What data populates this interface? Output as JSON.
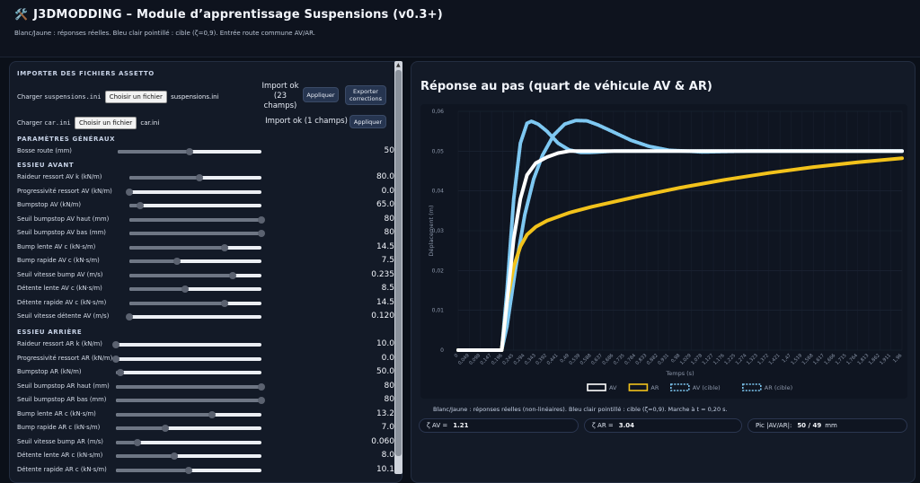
{
  "header": {
    "logo_icon": "🛠️",
    "title": "J3DMODDING – Module d’apprentissage Suspensions (v0.3+)",
    "subtitle": "Blanc/Jaune : réponses réelles. Bleu clair pointillé : cible (ζ=0,9). Entrée route commune AV/AR."
  },
  "import": {
    "section_title": "IMPORTER DES FICHIERS ASSETTO",
    "susp_label": "Charger",
    "susp_file": "suspensions.ini",
    "susp_choose": "Choisir un fichier",
    "susp_selected": "suspensions.ini",
    "susp_status": "Import ok (23 champs)",
    "susp_apply": "Appliquer",
    "export_label": "Exporter corrections",
    "car_label": "Charger",
    "car_file": "car.ini",
    "car_choose": "Choisir un fichier",
    "car_selected": "car.ini",
    "car_status": "Import ok (1 champs)",
    "car_apply": "Appliquer"
  },
  "general": {
    "title": "PARAMÈTRES GÉNÉRAUX",
    "params": [
      {
        "label": "Bosse route (mm)",
        "value": "50",
        "fill": 0.5
      }
    ]
  },
  "front": {
    "title": "ESSIEU AVANT",
    "params": [
      {
        "label": "Raideur ressort AV k (kN/m)",
        "value": "80.0",
        "fill": 0.53
      },
      {
        "label": "Progressivité ressort AV (kN/m)",
        "value": "0.0",
        "fill": 0.0
      },
      {
        "label": "Bumpstop AV (kN/m)",
        "value": "65.0",
        "fill": 0.08
      },
      {
        "label": "Seuil bumpstop AV haut (mm)",
        "value": "80",
        "fill": 1.0
      },
      {
        "label": "Seuil bumpstop AV bas (mm)",
        "value": "80",
        "fill": 1.0
      },
      {
        "label": "Bump lente AV c (kN·s/m)",
        "value": "14.5",
        "fill": 0.72
      },
      {
        "label": "Bump rapide AV c (kN·s/m)",
        "value": "7.5",
        "fill": 0.36
      },
      {
        "label": "Seuil vitesse bump AV (m/s)",
        "value": "0.235",
        "fill": 0.78
      },
      {
        "label": "Détente lente AV c (kN·s/m)",
        "value": "8.5",
        "fill": 0.42
      },
      {
        "label": "Détente rapide AV c (kN·s/m)",
        "value": "14.5",
        "fill": 0.72
      },
      {
        "label": "Seuil vitesse détente AV (m/s)",
        "value": "0.120",
        "fill": 0.0
      }
    ]
  },
  "rear": {
    "title": "ESSIEU ARRIÈRE",
    "params": [
      {
        "label": "Raideur ressort AR k (kN/m)",
        "value": "10.0",
        "fill": 0.0
      },
      {
        "label": "Progressivité ressort AR (kN/m)",
        "value": "0.0",
        "fill": 0.0
      },
      {
        "label": "Bumpstop AR (kN/m)",
        "value": "50.0",
        "fill": 0.03
      },
      {
        "label": "Seuil bumpstop AR haut (mm)",
        "value": "80",
        "fill": 1.0
      },
      {
        "label": "Seuil bumpstop AR bas (mm)",
        "value": "80",
        "fill": 1.0
      },
      {
        "label": "Bump lente AR c (kN·s/m)",
        "value": "13.2",
        "fill": 0.66
      },
      {
        "label": "Bump rapide AR c (kN·s/m)",
        "value": "7.0",
        "fill": 0.34
      },
      {
        "label": "Seuil vitesse bump AR (m/s)",
        "value": "0.060",
        "fill": 0.15
      },
      {
        "label": "Détente lente AR c (kN·s/m)",
        "value": "8.0",
        "fill": 0.4
      },
      {
        "label": "Détente rapide AR c (kN·s/m)",
        "value": "10.1",
        "fill": 0.5
      }
    ]
  },
  "chart": {
    "title": "Réponse au pas (quart de véhicule AV & AR)",
    "note": "Blanc/Jaune : réponses réelles (non-linéaires). Bleu clair pointillé : cible (ζ=0,9). Marche à t = 0,20 s.",
    "metrics": {
      "zeta_av_label": "ζ AV =",
      "zeta_av": "1.21",
      "zeta_ar_label": "ζ AR =",
      "zeta_ar": "3.04",
      "pic_label": "Pic |AV/AR|:",
      "pic_value": "50 / 49",
      "pic_unit": "mm"
    }
  },
  "chart_data": {
    "type": "line",
    "title": "Réponse au pas (quart de véhicule AV & AR)",
    "xlabel": "Temps (s)",
    "ylabel": "Déplacement (m)",
    "ylim": [
      0,
      0.06
    ],
    "yticks": [
      0,
      0.01,
      0.02,
      0.03,
      0.04,
      0.05,
      0.06
    ],
    "ytick_labels": [
      "0",
      "0,01",
      "0,02",
      "0,03",
      "0,04",
      "0,05",
      "0,06"
    ],
    "xlim": [
      0,
      2.0
    ],
    "xtick_labels": [
      "0",
      "0,049",
      "0,098",
      "0,147",
      "0,196",
      "0,245",
      "0,294",
      "0,343",
      "0,392",
      "0,441",
      "0,49",
      "0,539",
      "0,588",
      "0,637",
      "0,686",
      "0,735",
      "0,784",
      "0,833",
      "0,882",
      "0,931",
      "0,98",
      "1,029",
      "1,078",
      "1,127",
      "1,176",
      "1,225",
      "1,274",
      "1,323",
      "1,372",
      "1,421",
      "1,47",
      "1,519",
      "1,568",
      "1,617",
      "1,666",
      "1,715",
      "1,764",
      "1,813",
      "1,862",
      "1,911",
      "1,96"
    ],
    "legend_position": "bottom",
    "series": [
      {
        "name": "AV",
        "color": "#ffffff",
        "style": "solid",
        "x": [
          0,
          0.196,
          0.22,
          0.25,
          0.28,
          0.31,
          0.35,
          0.4,
          0.45,
          0.5,
          0.6,
          0.8,
          1.2,
          2.0
        ],
        "y": [
          0,
          0,
          0.012,
          0.028,
          0.038,
          0.044,
          0.047,
          0.0485,
          0.0495,
          0.05,
          0.05,
          0.05,
          0.05,
          0.05
        ]
      },
      {
        "name": "AR",
        "color": "#f2c21b",
        "style": "solid",
        "x": [
          0,
          0.196,
          0.22,
          0.25,
          0.28,
          0.31,
          0.35,
          0.4,
          0.5,
          0.6,
          0.8,
          1.0,
          1.2,
          1.4,
          1.6,
          1.8,
          2.0
        ],
        "y": [
          0,
          0,
          0.012,
          0.021,
          0.026,
          0.029,
          0.031,
          0.0325,
          0.0345,
          0.036,
          0.0385,
          0.0408,
          0.0428,
          0.0445,
          0.046,
          0.0472,
          0.0482
        ]
      },
      {
        "name": "AV (cible)",
        "color": "#7ec8f2",
        "style": "dotted",
        "x": [
          0,
          0.196,
          0.22,
          0.25,
          0.28,
          0.31,
          0.33,
          0.36,
          0.4,
          0.45,
          0.5,
          0.55,
          0.6,
          0.7,
          0.8,
          1.0,
          2.0
        ],
        "y": [
          0,
          0,
          0.015,
          0.038,
          0.052,
          0.057,
          0.0575,
          0.0568,
          0.055,
          0.052,
          0.0503,
          0.0497,
          0.0497,
          0.05,
          0.05,
          0.05,
          0.05
        ]
      },
      {
        "name": "AR (cible)",
        "color": "#7ec8f2",
        "style": "dotted",
        "x": [
          0,
          0.196,
          0.22,
          0.26,
          0.3,
          0.34,
          0.38,
          0.43,
          0.48,
          0.53,
          0.58,
          0.63,
          0.7,
          0.78,
          0.86,
          0.95,
          1.1,
          1.3,
          2.0
        ],
        "y": [
          0,
          0,
          0.006,
          0.021,
          0.034,
          0.043,
          0.049,
          0.054,
          0.0568,
          0.0577,
          0.0576,
          0.0566,
          0.0548,
          0.0527,
          0.0512,
          0.0502,
          0.0498,
          0.05,
          0.05
        ]
      }
    ]
  }
}
